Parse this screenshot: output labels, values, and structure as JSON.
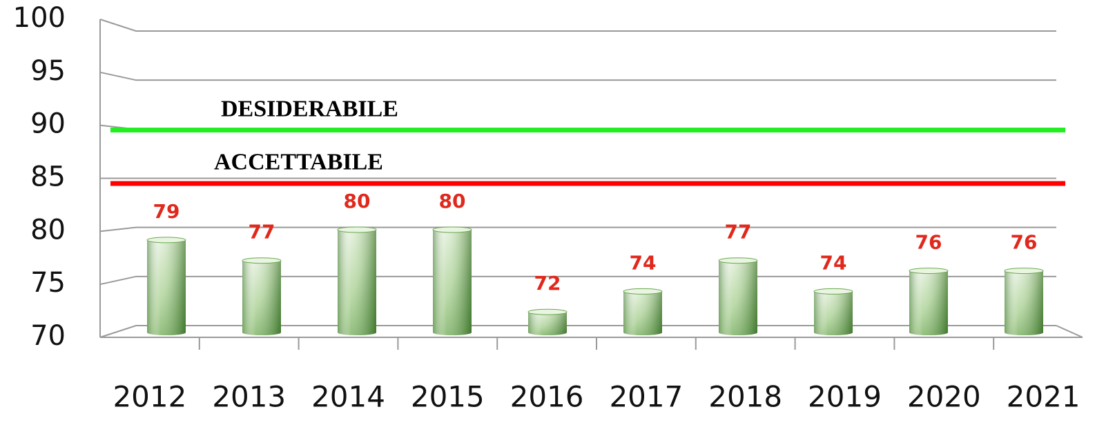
{
  "chart_data": {
    "type": "bar",
    "categories": [
      "2012",
      "2013",
      "2014",
      "2015",
      "2016",
      "2017",
      "2018",
      "2019",
      "2020",
      "2021"
    ],
    "values": [
      79,
      77,
      80,
      80,
      72,
      74,
      77,
      74,
      76,
      76
    ],
    "color": "#6aa84f",
    "value_color": "#e0281c",
    "ylim": [
      70,
      100
    ],
    "yticks": [
      70,
      75,
      80,
      85,
      90,
      95,
      100
    ],
    "grid": true,
    "reference_lines": [
      {
        "label": "DESIDERABILE",
        "value": 89.7,
        "color": "#22ee22"
      },
      {
        "label": "ACCETTABILE",
        "value": 84.5,
        "color": "#ff0000"
      }
    ]
  }
}
